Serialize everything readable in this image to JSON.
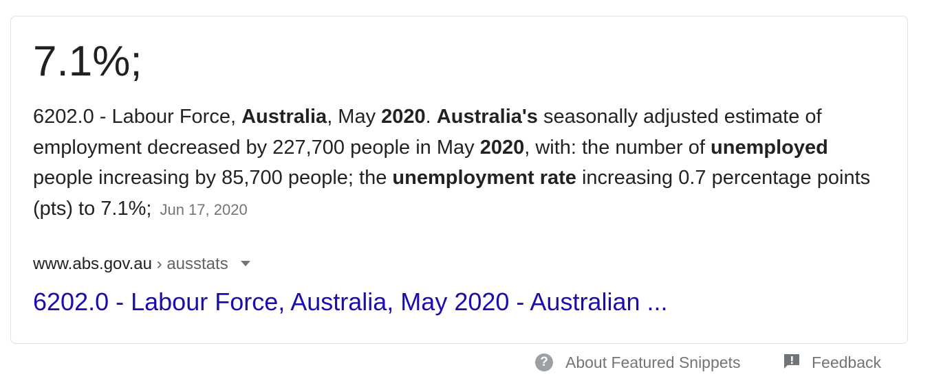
{
  "featured_snippet": {
    "answer": "7.1%;",
    "snippet": {
      "parts": [
        {
          "text": "6202.0 - Labour Force, ",
          "bold": false
        },
        {
          "text": "Australia",
          "bold": true
        },
        {
          "text": ", May ",
          "bold": false
        },
        {
          "text": "2020",
          "bold": true
        },
        {
          "text": ". ",
          "bold": false
        },
        {
          "text": "Australia's",
          "bold": true
        },
        {
          "text": " seasonally adjusted estimate of employment decreased by 227,700 people in May ",
          "bold": false
        },
        {
          "text": "2020",
          "bold": true
        },
        {
          "text": ", with: the number of ",
          "bold": false
        },
        {
          "text": "unemployed",
          "bold": true
        },
        {
          "text": " people increasing by 85,700 people; the ",
          "bold": false
        },
        {
          "text": "unemployment rate",
          "bold": true
        },
        {
          "text": " increasing 0.7 percentage points (pts) to 7.1%;",
          "bold": false
        }
      ],
      "date": "Jun 17, 2020"
    },
    "cite": {
      "domain": "www.abs.gov.au",
      "path": " › ausstats"
    },
    "title_link": "6202.0 - Labour Force, Australia, May 2020 - Australian ...",
    "link_color": "#1a0dab"
  },
  "footer": {
    "about_label": "About Featured Snippets",
    "feedback_label": "Feedback",
    "help_icon": "question-circle-icon",
    "feedback_icon": "feedback-flag-icon"
  }
}
